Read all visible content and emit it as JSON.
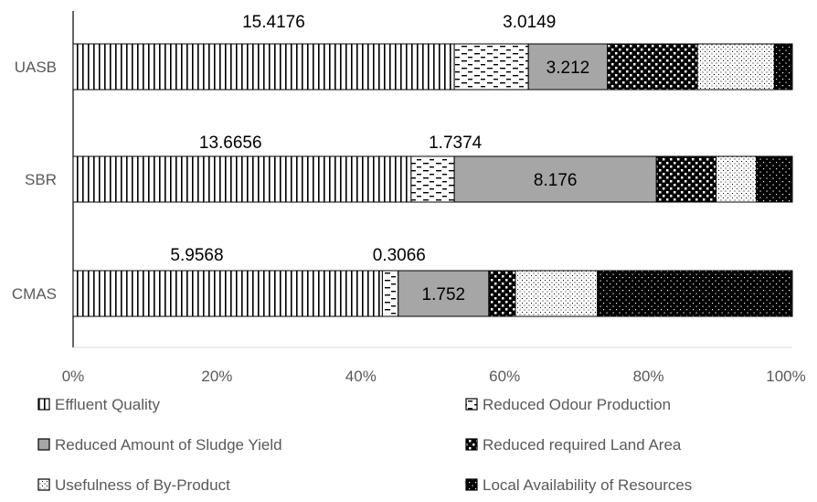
{
  "chart_data": {
    "type": "bar",
    "orientation": "horizontal",
    "stacking": "percent",
    "categories": [
      "UASB",
      "SBR",
      "CMAS"
    ],
    "xlim": [
      0,
      100
    ],
    "x_ticks": [
      "0%",
      "20%",
      "40%",
      "60%",
      "80%",
      "100%"
    ],
    "grid": false,
    "legend_position": "bottom",
    "series": [
      {
        "name": "Effluent Quality",
        "pattern": "vertical-lines",
        "color": "#000000",
        "percent": [
          53.0,
          47.0,
          43.0
        ],
        "labels": [
          "15.4176",
          "13.6656",
          "5.9568"
        ]
      },
      {
        "name": "Reduced Odour Production",
        "pattern": "dashes",
        "color": "#000000",
        "percent": [
          10.3,
          6.0,
          2.2
        ],
        "labels": [
          "3.0149",
          "1.7374",
          "0.3066"
        ]
      },
      {
        "name": "Reduced Amount of Sludge Yield",
        "pattern": "solid-gray",
        "color": "#a6a6a6",
        "percent": [
          11.0,
          28.1,
          12.6
        ],
        "labels": [
          "3.212",
          "8.176",
          "1.752"
        ]
      },
      {
        "name": "Reduced required Land Area",
        "pattern": "checker",
        "color": "#000000",
        "percent": [
          12.5,
          8.3,
          3.7
        ],
        "labels": [
          "",
          "",
          ""
        ]
      },
      {
        "name": "Usefulness of By-Product",
        "pattern": "sparse-dots",
        "color": "#000000",
        "percent": [
          10.7,
          5.6,
          11.4
        ],
        "labels": [
          "",
          "",
          ""
        ]
      },
      {
        "name": "Local Availability of Resources",
        "pattern": "dense-dots",
        "color": "#000000",
        "percent": [
          2.5,
          5.0,
          27.1
        ],
        "labels": [
          "",
          "",
          ""
        ]
      }
    ]
  }
}
